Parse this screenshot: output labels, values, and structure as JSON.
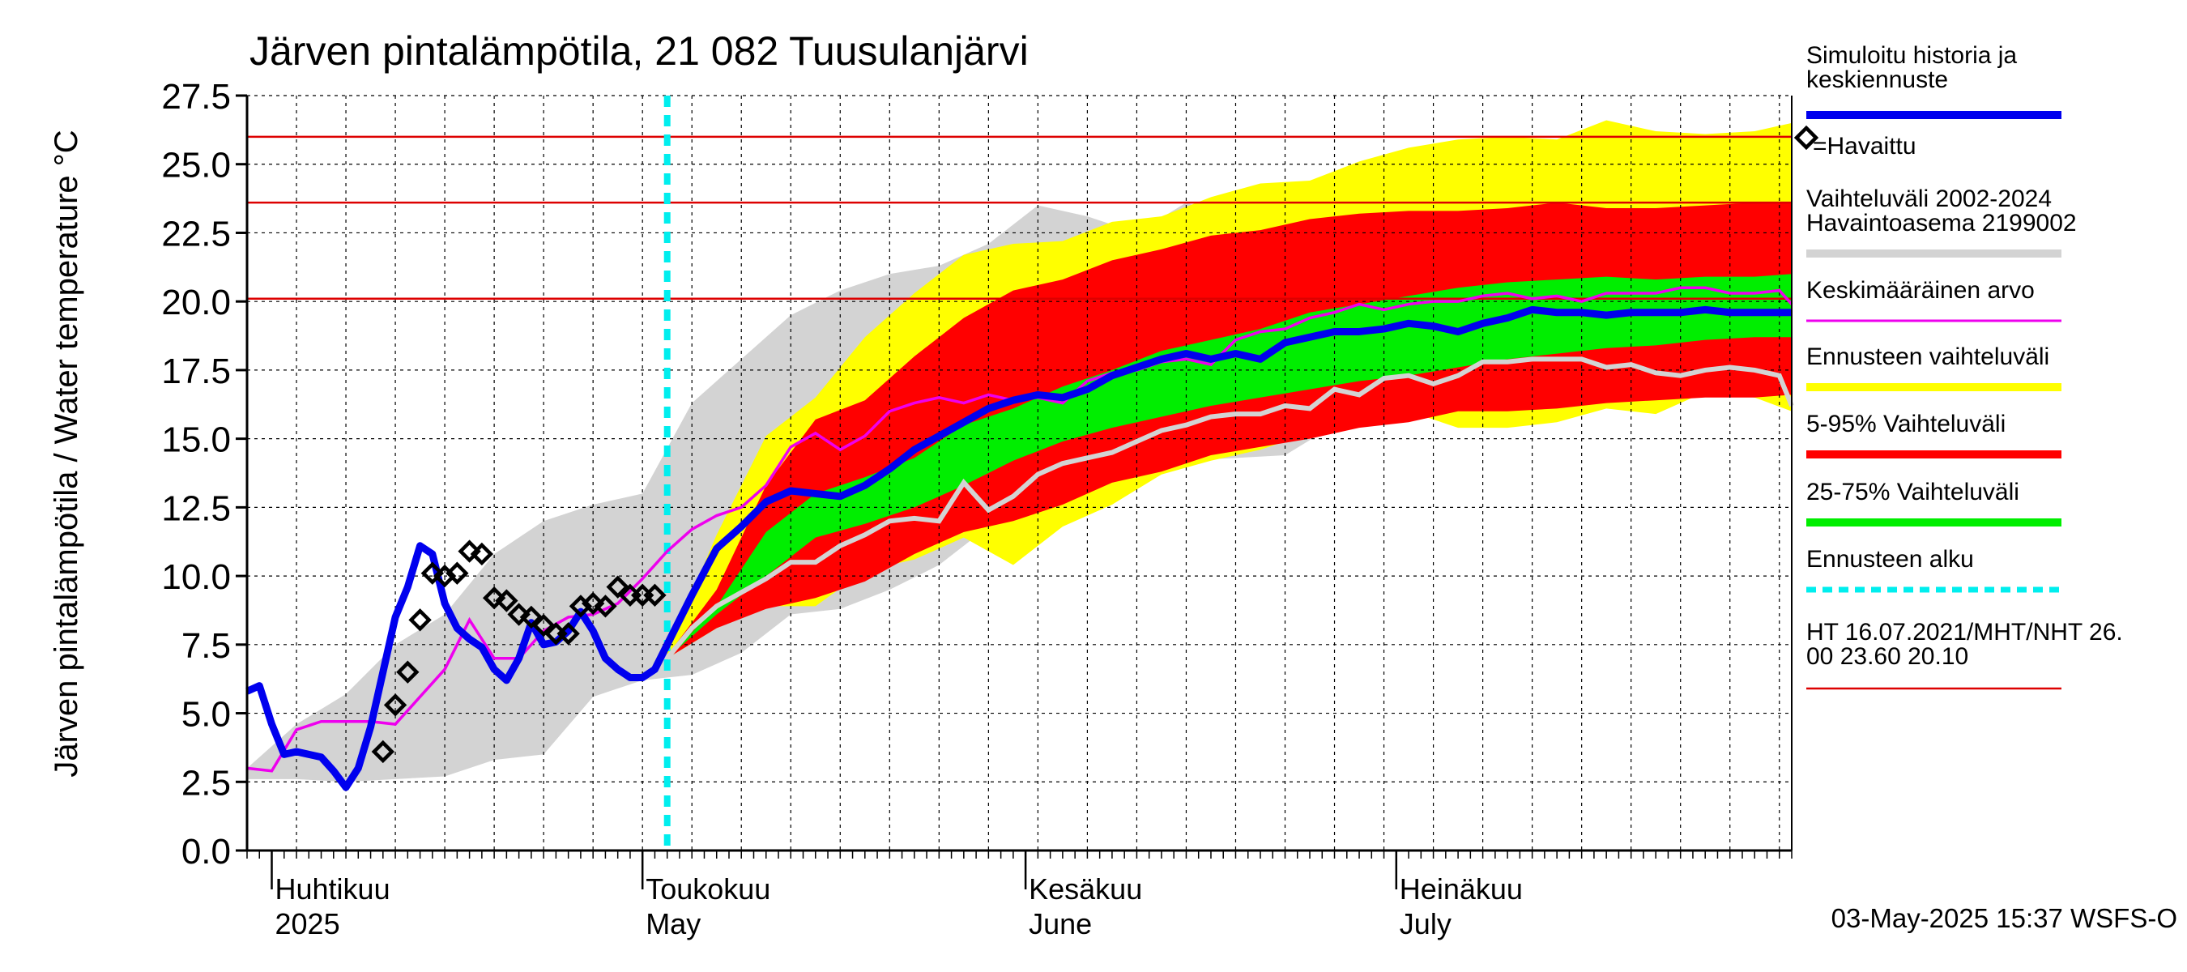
{
  "chart_data": {
    "type": "area",
    "title": "Järven pintalämpötila, 21 082 Tuusulanjärvi",
    "ylabel": "Järven pintalämpötila / Water temperature °C",
    "ylim": [
      0,
      27.5
    ],
    "yticks": [
      "0.0",
      "2.5",
      "5.0",
      "7.5",
      "10.0",
      "12.5",
      "15.0",
      "17.5",
      "20.0",
      "22.5",
      "25.0",
      "27.5"
    ],
    "xrange": [
      "2025-03-30",
      "2025-08-02"
    ],
    "month_labels": [
      {
        "date": "2025-04-01",
        "fi": "Huhtikuu",
        "en": "2025"
      },
      {
        "date": "2025-05-01",
        "fi": "Toukokuu",
        "en": "May"
      },
      {
        "date": "2025-06-01",
        "fi": "Kesäkuu",
        "en": "June"
      },
      {
        "date": "2025-07-01",
        "fi": "Heinäkuu",
        "en": "July"
      }
    ],
    "forecast_start": "2025-05-03",
    "reference_lines": [
      26.0,
      23.6,
      20.1
    ],
    "footer": "03-May-2025 15:37 WSFS-O",
    "colors": {
      "simulated": "#0000ee",
      "observed": "#000000",
      "mean": "#ee00ee",
      "hist_range": "#d3d3d3",
      "forecast_range": "#ffff00",
      "p5_95": "#ff0000",
      "p25_75": "#00ee00",
      "forecast_start": "#00eeee",
      "reference": "#dd0000"
    },
    "legend": [
      {
        "label": "Simuloitu historia ja keskiennuste",
        "color": "#0000ee",
        "style": "thick"
      },
      {
        "label": "=Havaittu",
        "color": "#000000",
        "style": "diamond"
      },
      {
        "label": "Vaihteluväli 2002-2024 Havaintoasema 2199002",
        "color": "#d3d3d3",
        "style": "thick"
      },
      {
        "label": "Keskimääräinen arvo",
        "color": "#ee00ee",
        "style": "thin"
      },
      {
        "label": "Ennusteen vaihteluväli",
        "color": "#ffff00",
        "style": "thick"
      },
      {
        "label": "5-95% Vaihteluväli",
        "color": "#ff0000",
        "style": "thick"
      },
      {
        "label": "25-75% Vaihteluväli",
        "color": "#00ee00",
        "style": "thick"
      },
      {
        "label": "Ennusteen alku",
        "color": "#00eeee",
        "style": "dashed"
      },
      {
        "label": "HT 16.07.2021/MHT/NHT 26.00 23.60 20.10",
        "color": "#dd0000",
        "style": "thin"
      }
    ],
    "series": [
      {
        "name": "Simuloitu historia ja keskiennuste",
        "kind": "line",
        "x": [
          "2025-03-30",
          "2025-03-31",
          "2025-04-01",
          "2025-04-02",
          "2025-04-03",
          "2025-04-04",
          "2025-04-05",
          "2025-04-06",
          "2025-04-07",
          "2025-04-08",
          "2025-04-09",
          "2025-04-10",
          "2025-04-11",
          "2025-04-12",
          "2025-04-13",
          "2025-04-14",
          "2025-04-15",
          "2025-04-16",
          "2025-04-17",
          "2025-04-18",
          "2025-04-19",
          "2025-04-20",
          "2025-04-21",
          "2025-04-22",
          "2025-04-23",
          "2025-04-24",
          "2025-04-25",
          "2025-04-26",
          "2025-04-27",
          "2025-04-28",
          "2025-04-29",
          "2025-04-30",
          "2025-05-01",
          "2025-05-02",
          "2025-05-03",
          "2025-05-05",
          "2025-05-07",
          "2025-05-09",
          "2025-05-11",
          "2025-05-13",
          "2025-05-15",
          "2025-05-17",
          "2025-05-19",
          "2025-05-21",
          "2025-05-23",
          "2025-05-25",
          "2025-05-27",
          "2025-05-29",
          "2025-05-31",
          "2025-06-02",
          "2025-06-04",
          "2025-06-06",
          "2025-06-08",
          "2025-06-10",
          "2025-06-12",
          "2025-06-14",
          "2025-06-16",
          "2025-06-18",
          "2025-06-20",
          "2025-06-22",
          "2025-06-24",
          "2025-06-26",
          "2025-06-28",
          "2025-06-30",
          "2025-07-02",
          "2025-07-04",
          "2025-07-06",
          "2025-07-08",
          "2025-07-10",
          "2025-07-12",
          "2025-07-14",
          "2025-07-16",
          "2025-07-18",
          "2025-07-20",
          "2025-07-22",
          "2025-07-24",
          "2025-07-26",
          "2025-07-28",
          "2025-07-30",
          "2025-08-01",
          "2025-08-02"
        ],
        "y": [
          5.8,
          6.0,
          4.6,
          3.5,
          3.6,
          3.5,
          3.4,
          2.9,
          2.3,
          3.0,
          4.5,
          6.5,
          8.5,
          9.6,
          11.1,
          10.8,
          9.0,
          8.1,
          7.7,
          7.4,
          6.6,
          6.2,
          7.0,
          8.3,
          7.5,
          7.6,
          8.0,
          8.7,
          8.0,
          7.0,
          6.6,
          6.3,
          6.3,
          6.6,
          7.5,
          9.3,
          11.0,
          11.8,
          12.7,
          13.1,
          13.0,
          12.9,
          13.3,
          13.9,
          14.6,
          15.1,
          15.6,
          16.1,
          16.4,
          16.6,
          16.5,
          16.8,
          17.3,
          17.6,
          17.9,
          18.1,
          17.9,
          18.1,
          17.9,
          18.5,
          18.7,
          18.9,
          18.9,
          19.0,
          19.2,
          19.1,
          18.9,
          19.2,
          19.4,
          19.7,
          19.6,
          19.6,
          19.5,
          19.6,
          19.6,
          19.6,
          19.7,
          19.6,
          19.6,
          19.6,
          19.6
        ]
      },
      {
        "name": "=Havaittu",
        "kind": "points",
        "x": [
          "2025-04-10",
          "2025-04-11",
          "2025-04-12",
          "2025-04-13",
          "2025-04-14",
          "2025-04-15",
          "2025-04-16",
          "2025-04-17",
          "2025-04-18",
          "2025-04-19",
          "2025-04-20",
          "2025-04-21",
          "2025-04-22",
          "2025-04-23",
          "2025-04-24",
          "2025-04-25",
          "2025-04-26",
          "2025-04-27",
          "2025-04-28",
          "2025-04-29",
          "2025-04-30",
          "2025-05-01",
          "2025-05-02"
        ],
        "y": [
          3.6,
          5.3,
          6.5,
          8.4,
          10.1,
          10.0,
          10.1,
          10.9,
          10.8,
          9.2,
          9.1,
          8.6,
          8.5,
          8.2,
          7.9,
          7.9,
          8.9,
          9.0,
          8.9,
          9.6,
          9.3,
          9.3,
          9.3
        ]
      },
      {
        "name": "Keskimääräinen arvo",
        "kind": "line",
        "x": [
          "2025-03-30",
          "2025-04-01",
          "2025-04-03",
          "2025-04-05",
          "2025-04-07",
          "2025-04-09",
          "2025-04-11",
          "2025-04-13",
          "2025-04-15",
          "2025-04-17",
          "2025-04-19",
          "2025-04-21",
          "2025-04-23",
          "2025-04-25",
          "2025-04-27",
          "2025-04-29",
          "2025-05-01",
          "2025-05-03",
          "2025-05-05",
          "2025-05-07",
          "2025-05-09",
          "2025-05-11",
          "2025-05-13",
          "2025-05-15",
          "2025-05-17",
          "2025-05-19",
          "2025-05-21",
          "2025-05-23",
          "2025-05-25",
          "2025-05-27",
          "2025-05-29",
          "2025-05-31",
          "2025-06-02",
          "2025-06-04",
          "2025-06-06",
          "2025-06-08",
          "2025-06-10",
          "2025-06-12",
          "2025-06-14",
          "2025-06-16",
          "2025-06-18",
          "2025-06-20",
          "2025-06-22",
          "2025-06-24",
          "2025-06-26",
          "2025-06-28",
          "2025-06-30",
          "2025-07-02",
          "2025-07-04",
          "2025-07-06",
          "2025-07-08",
          "2025-07-10",
          "2025-07-12",
          "2025-07-14",
          "2025-07-16",
          "2025-07-18",
          "2025-07-20",
          "2025-07-22",
          "2025-07-24",
          "2025-07-26",
          "2025-07-28",
          "2025-07-30",
          "2025-08-01",
          "2025-08-02"
        ],
        "y": [
          3.0,
          2.9,
          4.4,
          4.7,
          4.7,
          4.7,
          4.6,
          5.6,
          6.6,
          8.4,
          7.0,
          7.0,
          8.0,
          8.5,
          8.6,
          9.0,
          9.9,
          10.9,
          11.7,
          12.2,
          12.5,
          13.3,
          14.7,
          15.2,
          14.6,
          15.1,
          16.0,
          16.3,
          16.5,
          16.3,
          16.6,
          16.4,
          16.5,
          16.3,
          17.1,
          17.4,
          17.5,
          17.8,
          17.9,
          17.7,
          18.6,
          18.9,
          19.0,
          19.4,
          19.6,
          19.9,
          19.7,
          19.9,
          20.0,
          20.0,
          20.2,
          20.3,
          20.1,
          20.2,
          20.0,
          20.3,
          20.3,
          20.3,
          20.5,
          20.5,
          20.3,
          20.3,
          20.4,
          19.9
        ]
      },
      {
        "name": "Simuloitu historia ja keskiennuste (ennusteen alin)",
        "kind": "line",
        "legend": false,
        "x": [
          "2025-05-03",
          "2025-05-05",
          "2025-05-07",
          "2025-05-09",
          "2025-05-11",
          "2025-05-13",
          "2025-05-15",
          "2025-05-17",
          "2025-05-19",
          "2025-05-21",
          "2025-05-23",
          "2025-05-25",
          "2025-05-27",
          "2025-05-29",
          "2025-05-31",
          "2025-06-02",
          "2025-06-04",
          "2025-06-06",
          "2025-06-08",
          "2025-06-10",
          "2025-06-12",
          "2025-06-14",
          "2025-06-16",
          "2025-06-18",
          "2025-06-20",
          "2025-06-22",
          "2025-06-24",
          "2025-06-26",
          "2025-06-28",
          "2025-06-30",
          "2025-07-02",
          "2025-07-04",
          "2025-07-06",
          "2025-07-08",
          "2025-07-10",
          "2025-07-12",
          "2025-07-14",
          "2025-07-16",
          "2025-07-18",
          "2025-07-20",
          "2025-07-22",
          "2025-07-24",
          "2025-07-26",
          "2025-07-28",
          "2025-07-30",
          "2025-08-01",
          "2025-08-02"
        ],
        "y": [
          7.0,
          8.1,
          8.9,
          9.4,
          9.9,
          10.5,
          10.5,
          11.1,
          11.5,
          12.0,
          12.1,
          12.0,
          13.4,
          12.4,
          12.9,
          13.7,
          14.1,
          14.3,
          14.5,
          14.9,
          15.3,
          15.5,
          15.8,
          15.9,
          15.9,
          16.2,
          16.1,
          16.8,
          16.6,
          17.2,
          17.3,
          17.0,
          17.3,
          17.8,
          17.8,
          17.9,
          17.9,
          17.9,
          17.6,
          17.7,
          17.4,
          17.3,
          17.5,
          17.6,
          17.5,
          17.3,
          16.2
        ]
      }
    ],
    "bands": [
      {
        "name": "Vaihteluväli 2002-2024 Havaintoasema 2199002",
        "x": [
          "2025-03-30",
          "2025-04-03",
          "2025-04-07",
          "2025-04-11",
          "2025-04-15",
          "2025-04-19",
          "2025-04-23",
          "2025-04-27",
          "2025-05-01",
          "2025-05-05",
          "2025-05-09",
          "2025-05-13",
          "2025-05-17",
          "2025-05-21",
          "2025-05-25",
          "2025-05-29",
          "2025-06-02",
          "2025-06-06",
          "2025-06-10",
          "2025-06-14",
          "2025-06-18",
          "2025-06-22",
          "2025-06-26",
          "2025-06-30",
          "2025-07-04",
          "2025-07-08",
          "2025-07-12",
          "2025-07-16",
          "2025-07-20",
          "2025-07-24",
          "2025-07-28",
          "2025-08-02"
        ],
        "low": [
          2.6,
          2.6,
          2.5,
          2.6,
          2.7,
          3.3,
          3.5,
          5.6,
          6.2,
          6.4,
          7.2,
          8.6,
          8.8,
          9.5,
          10.4,
          11.8,
          12.9,
          13.7,
          14.0,
          14.2,
          14.3,
          14.4,
          15.5,
          15.6,
          15.8,
          16.2,
          16.4,
          16.6,
          16.9,
          17.2,
          17.1,
          16.9
        ],
        "high": [
          3.0,
          4.6,
          5.7,
          7.5,
          8.6,
          10.8,
          12.0,
          12.6,
          13.0,
          16.3,
          17.9,
          19.5,
          20.4,
          21.0,
          21.3,
          22.1,
          23.5,
          23.1,
          22.5,
          23.6,
          23.0,
          23.5,
          23.7,
          24.6,
          25.3,
          25.5,
          25.7,
          25.7,
          25.4,
          25.2,
          25.5,
          26.1
        ]
      },
      {
        "name": "Ennusteen vaihteluväli",
        "x": [
          "2025-05-03",
          "2025-05-07",
          "2025-05-11",
          "2025-05-15",
          "2025-05-19",
          "2025-05-23",
          "2025-05-27",
          "2025-05-31",
          "2025-06-04",
          "2025-06-08",
          "2025-06-12",
          "2025-06-16",
          "2025-06-20",
          "2025-06-24",
          "2025-06-28",
          "2025-07-02",
          "2025-07-06",
          "2025-07-10",
          "2025-07-14",
          "2025-07-18",
          "2025-07-22",
          "2025-07-26",
          "2025-07-30",
          "2025-08-02"
        ],
        "low": [
          7.0,
          8.1,
          8.9,
          8.9,
          10.2,
          10.6,
          11.4,
          10.4,
          11.8,
          12.6,
          13.7,
          14.2,
          14.6,
          15.2,
          15.6,
          16.0,
          15.4,
          15.4,
          15.6,
          16.1,
          15.9,
          16.7,
          16.5,
          16.0
        ],
        "high": [
          7.3,
          11.5,
          15.1,
          16.5,
          18.7,
          20.3,
          21.7,
          22.1,
          22.2,
          22.9,
          23.1,
          23.8,
          24.3,
          24.4,
          25.1,
          25.6,
          25.9,
          26.0,
          25.9,
          26.6,
          26.2,
          26.1,
          26.2,
          26.5
        ]
      },
      {
        "name": "5-95% Vaihteluväli",
        "x": [
          "2025-05-03",
          "2025-05-07",
          "2025-05-11",
          "2025-05-15",
          "2025-05-19",
          "2025-05-23",
          "2025-05-27",
          "2025-05-31",
          "2025-06-04",
          "2025-06-08",
          "2025-06-12",
          "2025-06-16",
          "2025-06-20",
          "2025-06-24",
          "2025-06-28",
          "2025-07-02",
          "2025-07-06",
          "2025-07-10",
          "2025-07-14",
          "2025-07-18",
          "2025-07-22",
          "2025-07-26",
          "2025-07-30",
          "2025-08-02"
        ],
        "low": [
          7.0,
          8.1,
          8.8,
          9.2,
          9.8,
          10.8,
          11.6,
          12.0,
          12.6,
          13.4,
          13.8,
          14.4,
          14.7,
          15.0,
          15.4,
          15.6,
          16.0,
          16.0,
          16.1,
          16.3,
          16.4,
          16.5,
          16.5,
          16.6
        ],
        "high": [
          7.1,
          9.5,
          13.3,
          15.7,
          16.4,
          18.0,
          19.4,
          20.4,
          20.8,
          21.5,
          21.9,
          22.4,
          22.6,
          23.0,
          23.2,
          23.3,
          23.3,
          23.4,
          23.6,
          23.4,
          23.4,
          23.5,
          23.6,
          23.6
        ]
      },
      {
        "name": "25-75% Vaihteluväli",
        "x": [
          "2025-05-03",
          "2025-05-07",
          "2025-05-11",
          "2025-05-15",
          "2025-05-19",
          "2025-05-23",
          "2025-05-27",
          "2025-05-31",
          "2025-06-04",
          "2025-06-08",
          "2025-06-12",
          "2025-06-16",
          "2025-06-20",
          "2025-06-24",
          "2025-06-28",
          "2025-07-02",
          "2025-07-06",
          "2025-07-10",
          "2025-07-14",
          "2025-07-18",
          "2025-07-22",
          "2025-07-26",
          "2025-07-30",
          "2025-08-02"
        ],
        "low": [
          7.0,
          8.6,
          10.0,
          11.4,
          11.9,
          12.5,
          13.3,
          14.2,
          14.9,
          15.4,
          15.8,
          16.2,
          16.5,
          16.8,
          17.1,
          17.3,
          17.6,
          17.9,
          18.1,
          18.3,
          18.4,
          18.6,
          18.7,
          18.7
        ],
        "high": [
          7.0,
          8.9,
          11.6,
          13.0,
          13.6,
          14.3,
          15.5,
          16.1,
          16.9,
          17.5,
          18.2,
          18.6,
          19.0,
          19.6,
          19.9,
          20.2,
          20.5,
          20.7,
          20.8,
          20.9,
          20.8,
          20.9,
          20.9,
          21.0
        ]
      }
    ]
  }
}
